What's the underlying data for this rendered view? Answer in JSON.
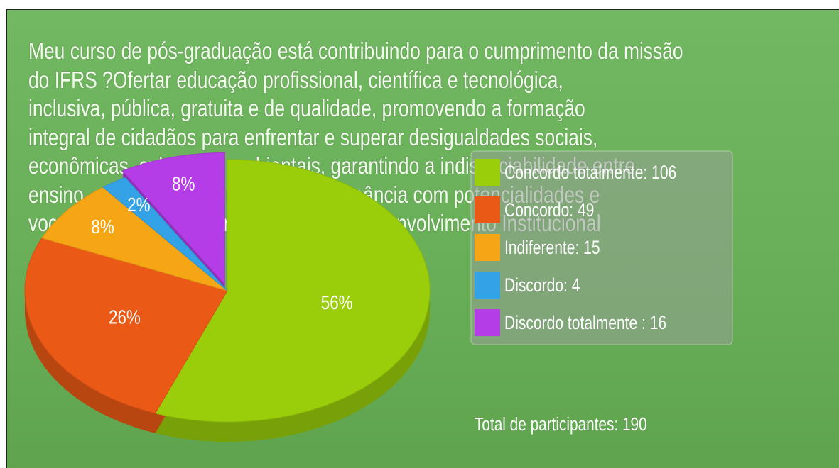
{
  "chart_data": {
    "type": "pie",
    "title": "Meu curso de pós-graduação está contribuindo para o cumprimento da missão\ndo IFRS ?Ofertar educação profissional, científica e tecnológica,\ninclusiva, pública, gratuita e de qualidade, promovendo a formação\nintegral de cidadãos para enfrentar e superar desigualdades sociais,\neconômicas, culturais e ambientais, garantindo a indissociabilidade entre\nensino, pesquisa e extensão em consonância com potencialidades e\nvocações locais e regionais? Plano de Desenvolvimento Institucional",
    "categories": [
      "Concordo totalmente",
      "Concordo",
      "Indiferente",
      "Discordo",
      "Discordo totalmente"
    ],
    "legend_labels": [
      "Concordo totalmente: 106",
      "Concordo: 49",
      "Indiferente: 15",
      "Discordo: 4",
      "Discordo totalmente : 16"
    ],
    "values": [
      106,
      49,
      15,
      4,
      16
    ],
    "value_labels": [
      "56%",
      "26%",
      "8%",
      "2%",
      "8%"
    ],
    "colors": [
      "#9acd0a",
      "#ea5a16",
      "#f6a515",
      "#33a2e6",
      "#b53de8"
    ],
    "total_label": "Total de participantes: 190"
  }
}
